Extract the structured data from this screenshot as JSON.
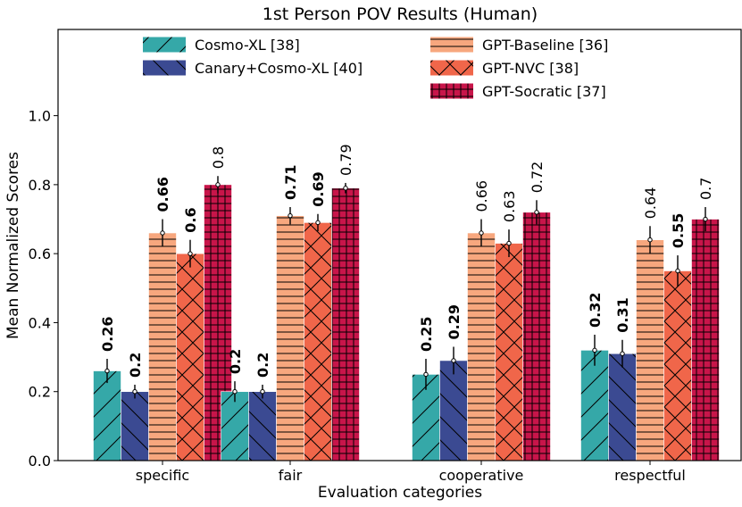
{
  "chart_data": {
    "type": "bar",
    "title": "1st Person POV Results (Human)",
    "xlabel": "Evaluation categories",
    "ylabel": "Mean Normalized Scores",
    "ylim": [
      0,
      1.25
    ],
    "yticks": [
      0.0,
      0.2,
      0.4,
      0.6,
      0.8,
      1.0
    ],
    "ytick_labels": [
      "0.0",
      "0.2",
      "0.4",
      "0.6",
      "0.8",
      "1.0"
    ],
    "categories": [
      "specific",
      "fair",
      "cooperative",
      "respectful"
    ],
    "legend_position": "top-center",
    "grid": false,
    "series": [
      {
        "name": "Cosmo-XL [38]",
        "color": "#35A8A8",
        "hatch": "forward-diagonal",
        "values": [
          0.26,
          0.2,
          0.25,
          0.32
        ],
        "labels": [
          "0.26",
          "0.2",
          "0.25",
          "0.32"
        ],
        "bold": [
          true,
          true,
          true,
          true
        ],
        "error": [
          0.035,
          0.03,
          0.045,
          0.045
        ]
      },
      {
        "name": "Canary+Cosmo-XL [40]",
        "color": "#3B4A92",
        "hatch": "back-diagonal",
        "values": [
          0.2,
          0.2,
          0.29,
          0.31
        ],
        "labels": [
          "0.2",
          "0.2",
          "0.29",
          "0.31"
        ],
        "bold": [
          true,
          true,
          true,
          true
        ],
        "error": [
          0.02,
          0.02,
          0.04,
          0.04
        ]
      },
      {
        "name": "GPT-Baseline [36]",
        "color": "#F7A77E",
        "hatch": "horizontal",
        "values": [
          0.66,
          0.71,
          0.66,
          0.64
        ],
        "labels": [
          "0.66",
          "0.71",
          "0.66",
          "0.64"
        ],
        "bold": [
          true,
          true,
          false,
          false
        ],
        "error": [
          0.04,
          0.025,
          0.04,
          0.04
        ]
      },
      {
        "name": "GPT-NVC [38]",
        "color": "#F0664A",
        "hatch": "cross-diagonal",
        "values": [
          0.6,
          0.69,
          0.63,
          0.55
        ],
        "labels": [
          "0.6",
          "0.69",
          "0.63",
          "0.55"
        ],
        "bold": [
          true,
          true,
          false,
          true
        ],
        "error": [
          0.04,
          0.025,
          0.04,
          0.045
        ]
      },
      {
        "name": "GPT-Socratic [37]",
        "color": "#C8154A",
        "hatch": "grid",
        "values": [
          0.8,
          0.79,
          0.72,
          0.7
        ],
        "labels": [
          "0.8",
          "0.79",
          "0.72",
          "0.7"
        ],
        "bold": [
          false,
          false,
          false,
          false
        ],
        "error": [
          0.025,
          0.015,
          0.035,
          0.035
        ]
      }
    ]
  }
}
